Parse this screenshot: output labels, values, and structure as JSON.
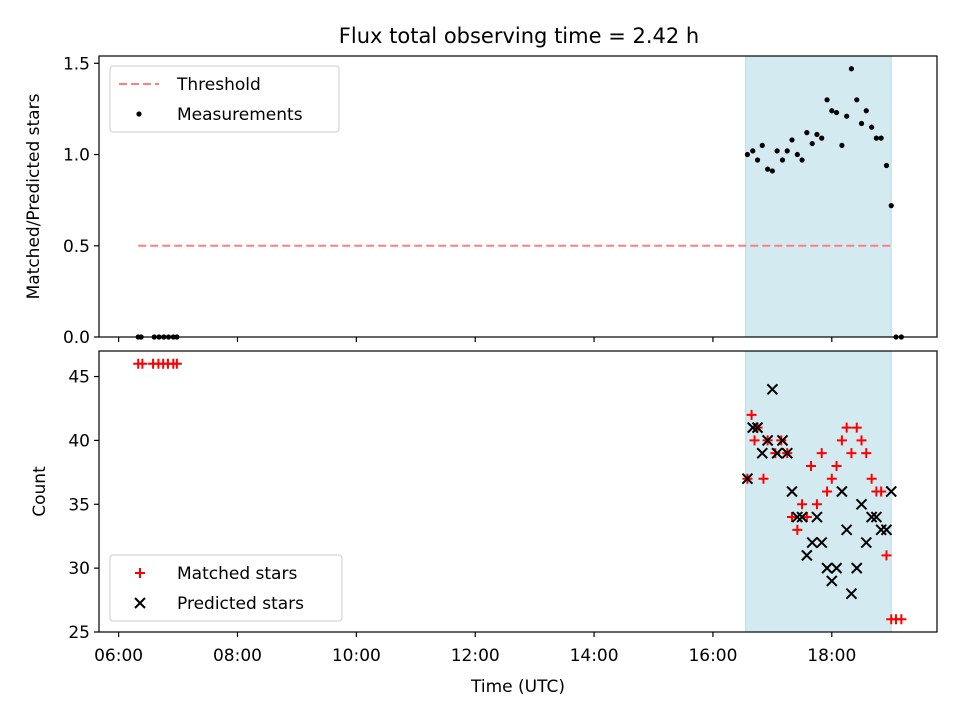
{
  "figure": {
    "title": "Flux total observing time = 2.42 h"
  },
  "chart_data": [
    {
      "type": "scatter",
      "panel": "top",
      "ylabel": "Matched/Predicted stars",
      "ylim": [
        0,
        1.54
      ],
      "yticks": [
        "0.0",
        "0.5",
        "1.0",
        "1.5"
      ],
      "ytick_values": [
        0,
        0.5,
        1.0,
        1.5
      ],
      "xlim_hours": [
        5.67,
        19.77
      ],
      "shaded_span_hours": [
        16.55,
        19.0
      ],
      "shade_color": "#d3eaf0",
      "threshold": {
        "name": "Threshold",
        "value": 0.5,
        "x_hours": [
          6.33,
          19.0
        ],
        "color": "#ff7f7f"
      },
      "legend": {
        "location": "upper left",
        "entries": [
          "Threshold",
          "Measurements"
        ]
      },
      "series": [
        {
          "name": "Measurements",
          "color": "#000000",
          "x_hours": [
            6.33,
            6.38,
            6.6,
            6.68,
            6.76,
            6.84,
            6.92,
            6.98,
            16.58,
            16.67,
            16.75,
            16.83,
            16.92,
            17.0,
            17.08,
            17.17,
            17.25,
            17.33,
            17.42,
            17.5,
            17.58,
            17.67,
            17.75,
            17.83,
            17.92,
            18.0,
            18.08,
            18.17,
            18.25,
            18.33,
            18.42,
            18.5,
            18.58,
            18.67,
            18.75,
            18.83,
            18.92,
            19.0,
            19.08,
            19.17
          ],
          "y": [
            0,
            0,
            0,
            0,
            0,
            0,
            0,
            0,
            1.0,
            1.02,
            0.97,
            1.05,
            0.92,
            0.91,
            1.02,
            0.97,
            1.02,
            1.08,
            1.0,
            0.97,
            1.12,
            1.06,
            1.11,
            1.09,
            1.3,
            1.24,
            1.23,
            1.05,
            1.21,
            1.47,
            1.3,
            1.17,
            1.24,
            1.15,
            1.09,
            1.09,
            0.94,
            0.72,
            0,
            0
          ]
        }
      ]
    },
    {
      "type": "scatter",
      "panel": "bottom",
      "xlabel": "Time (UTC)",
      "ylabel": "Count",
      "ylim": [
        25,
        47
      ],
      "yticks": [
        "25",
        "30",
        "35",
        "40",
        "45"
      ],
      "ytick_values": [
        25,
        30,
        35,
        40,
        45
      ],
      "xlim_hours": [
        5.67,
        19.77
      ],
      "xticks": [
        "06:00",
        "08:00",
        "10:00",
        "12:00",
        "14:00",
        "16:00",
        "18:00"
      ],
      "xtick_hours": [
        6,
        8,
        10,
        12,
        14,
        16,
        18
      ],
      "shaded_span_hours": [
        16.55,
        19.0
      ],
      "legend": {
        "location": "lower left",
        "entries": [
          "Matched stars",
          "Predicted stars"
        ]
      },
      "series": [
        {
          "name": "Matched stars",
          "marker": "plus",
          "color": "#ff0000",
          "x_hours": [
            6.33,
            6.4,
            6.58,
            6.67,
            6.75,
            6.83,
            6.92,
            6.98,
            16.58,
            16.65,
            16.7,
            16.75,
            16.85,
            16.92,
            17.05,
            17.15,
            17.25,
            17.33,
            17.42,
            17.5,
            17.58,
            17.65,
            17.75,
            17.83,
            17.92,
            18.0,
            18.08,
            18.17,
            18.25,
            18.33,
            18.42,
            18.5,
            18.58,
            18.67,
            18.75,
            18.83,
            18.92,
            19.0,
            19.08,
            19.17
          ],
          "y": [
            46,
            46,
            46,
            46,
            46,
            46,
            46,
            46,
            37,
            42,
            40,
            41,
            37,
            40,
            39,
            40,
            39,
            34,
            33,
            35,
            34,
            38,
            35,
            39,
            36,
            37,
            38,
            40,
            41,
            39,
            41,
            40,
            39,
            37,
            36,
            36,
            31,
            26,
            26,
            26
          ]
        },
        {
          "name": "Predicted stars",
          "marker": "x",
          "color": "#000000",
          "x_hours": [
            16.58,
            16.67,
            16.75,
            16.83,
            16.92,
            17.0,
            17.08,
            17.17,
            17.25,
            17.33,
            17.42,
            17.5,
            17.58,
            17.67,
            17.75,
            17.83,
            17.92,
            18.0,
            18.08,
            18.17,
            18.25,
            18.33,
            18.42,
            18.5,
            18.58,
            18.67,
            18.75,
            18.83,
            18.92,
            19.0
          ],
          "y": [
            37,
            41,
            41,
            39,
            40,
            44,
            39,
            40,
            39,
            36,
            34,
            34,
            31,
            32,
            34,
            32,
            30,
            29,
            30,
            36,
            33,
            28,
            30,
            35,
            32,
            34,
            34,
            33,
            33,
            36
          ]
        }
      ]
    }
  ]
}
